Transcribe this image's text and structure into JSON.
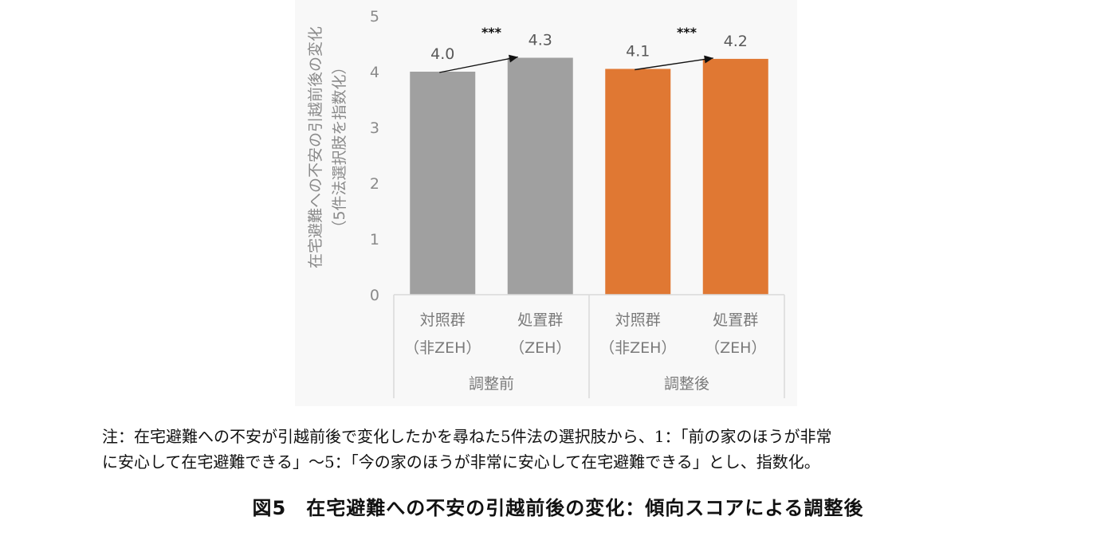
{
  "chart_data": {
    "type": "bar",
    "ylabel_line1": "在宅避難への不安の引越前後の変化",
    "ylabel_line2": "（5件法選択肢を指数化）",
    "ylim": [
      0,
      5
    ],
    "yticks": [
      "0",
      "1",
      "2",
      "3",
      "4",
      "5"
    ],
    "groups": [
      {
        "name": "調整前",
        "bars": [
          {
            "label1": "対照群",
            "label2": "（非ZEH）",
            "value": 4.0,
            "display": "4.0",
            "color": "#a0a0a0"
          },
          {
            "label1": "処置群",
            "label2": "（ZEH）",
            "value": 4.25,
            "display": "4.3",
            "color": "#a0a0a0"
          }
        ],
        "significance": "***"
      },
      {
        "name": "調整後",
        "bars": [
          {
            "label1": "対照群",
            "label2": "（非ZEH）",
            "value": 4.05,
            "display": "4.1",
            "color": "#e07833"
          },
          {
            "label1": "処置群",
            "label2": "（ZEH）",
            "value": 4.23,
            "display": "4.2",
            "color": "#e07833"
          }
        ],
        "significance": "***"
      }
    ],
    "grid": false
  },
  "note": {
    "line1": "注：在宅避難への不安が引越前後で変化したかを尋ねた5件法の選択肢から、1：「前の家のほうが非常",
    "line2": "に安心して在宅避難できる」〜5：「今の家のほうが非常に安心して在宅避難できる」とし、指数化。"
  },
  "caption": "図5　在宅避難への不安の引越前後の変化：傾向スコアによる調整後"
}
